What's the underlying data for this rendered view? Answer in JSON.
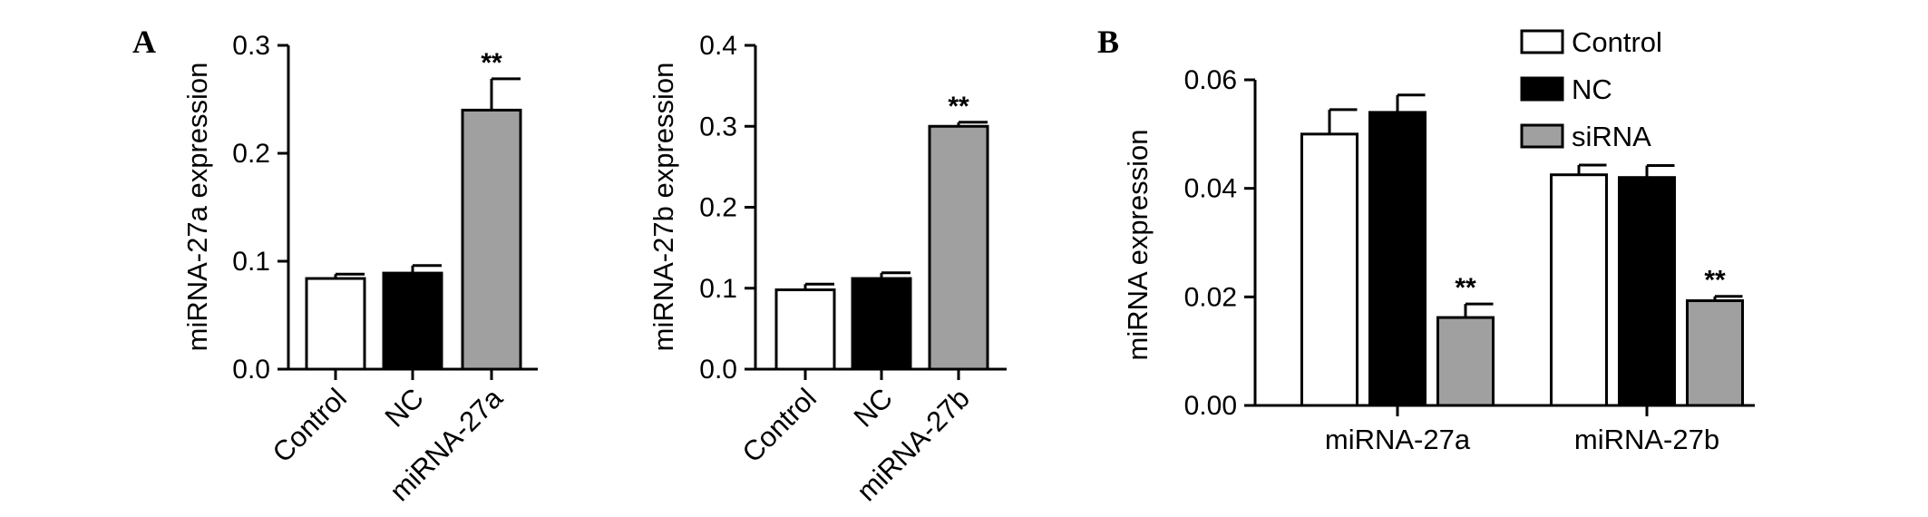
{
  "colors": {
    "control": "#ffffff",
    "nc": "#000000",
    "mirna": "#a0a0a0",
    "stroke": "#000000"
  },
  "chart_data": [
    {
      "panel": "A",
      "type": "bar",
      "categories": [
        "Control",
        "NC",
        "miRNA-27a"
      ],
      "values": [
        0.084,
        0.089,
        0.24
      ],
      "errors": [
        0.004,
        0.007,
        0.029
      ],
      "significance": [
        "",
        "",
        "**"
      ],
      "ylabel": "miRNA-27a expression",
      "ylim": [
        0,
        0.3
      ],
      "yticks": [
        "0.0",
        "0.1",
        "0.2",
        "0.3"
      ],
      "bar_colors": [
        "#ffffff",
        "#000000",
        "#a0a0a0"
      ]
    },
    {
      "panel": "",
      "type": "bar",
      "categories": [
        "Control",
        "NC",
        "miRNA-27b"
      ],
      "values": [
        0.098,
        0.112,
        0.3
      ],
      "errors": [
        0.007,
        0.007,
        0.005
      ],
      "significance": [
        "",
        "",
        "**"
      ],
      "ylabel": "miRNA-27b expression",
      "ylim": [
        0,
        0.4
      ],
      "yticks": [
        "0.0",
        "0.1",
        "0.2",
        "0.3",
        "0.4"
      ],
      "bar_colors": [
        "#ffffff",
        "#000000",
        "#a0a0a0"
      ]
    },
    {
      "panel": "B",
      "type": "bar",
      "categories": [
        "miRNA-27a",
        "miRNA-27b"
      ],
      "series": [
        {
          "name": "Control",
          "color": "#ffffff",
          "values": [
            0.05,
            0.0425
          ],
          "errors": [
            0.0045,
            0.0018
          ],
          "significance": [
            "",
            ""
          ]
        },
        {
          "name": "NC",
          "color": "#000000",
          "values": [
            0.054,
            0.042
          ],
          "errors": [
            0.0032,
            0.0022
          ],
          "significance": [
            "",
            ""
          ]
        },
        {
          "name": "siRNA",
          "color": "#a0a0a0",
          "values": [
            0.0162,
            0.0193
          ],
          "errors": [
            0.0025,
            0.0008
          ],
          "significance": [
            "**",
            "**"
          ]
        }
      ],
      "ylabel": "miRNA expression",
      "ylim": [
        0,
        0.06
      ],
      "yticks": [
        "0.00",
        "0.02",
        "0.04",
        "0.06"
      ],
      "legend": "top-right"
    }
  ]
}
